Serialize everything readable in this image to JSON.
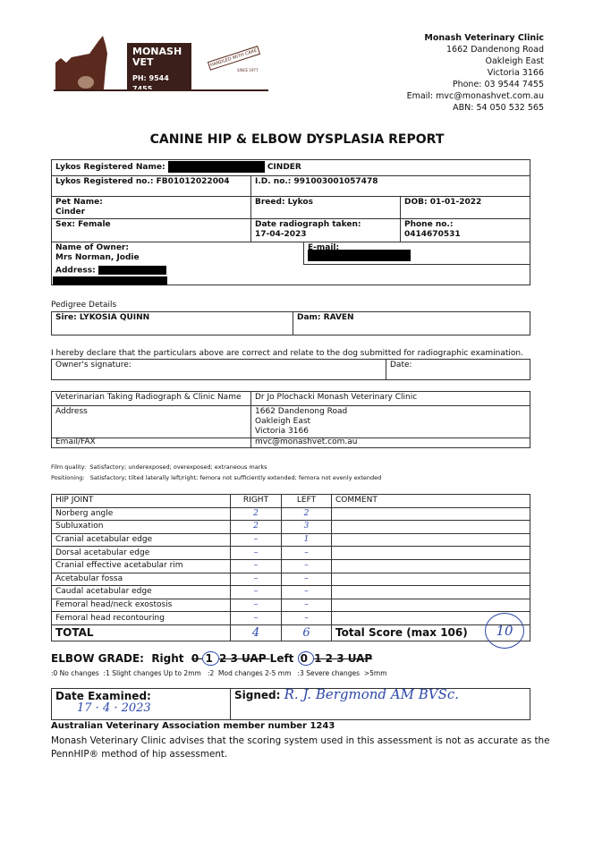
{
  "clinic": {
    "logo_name_line1": "MONASH",
    "logo_name_line2": "VET",
    "logo_phone": "PH: 9544 7455",
    "logo_stamp": "HANDLED WITH CARE",
    "logo_since": "SINCE 1977",
    "name": "Monash Veterinary Clinic",
    "address1": "1662 Dandenong Road",
    "address2": "Oakleigh East",
    "address3": "Victoria 3166",
    "phone": "Phone: 03 9544 7455",
    "email": "Email: mvc@monashvet.com.au",
    "abn": "ABN: 54 050 532 565"
  },
  "title": "CANINE HIP & ELBOW DYSPLASIA REPORT",
  "dog": {
    "registered_name_label": "Lykos Registered Name:",
    "registered_name": "CINDER",
    "registered_no": "Lykos Registered no.: FB01012022004",
    "id_no": "I.D. no.: 991003001057478",
    "pet_name_label": "Pet Name:",
    "pet_name": "Cinder",
    "breed": "Breed: Lykos",
    "dob": "DOB: 01-01-2022",
    "sex": "Sex: Female",
    "radiograph_label": "Date radiograph taken:",
    "radiograph_date": "17-04-2023",
    "phone_label": "Phone no.:",
    "phone": "0414670531",
    "owner_label": "Name of Owner:",
    "owner": "Mrs Norman, Jodie",
    "email_label": "E-mail:",
    "address_label": "Address:"
  },
  "pedigree": {
    "heading": "Pedigree Details",
    "sire": "Sire: LYKOSIA QUINN",
    "dam": "Dam: RAVEN"
  },
  "declaration": {
    "text": "I hereby declare that the particulars above are correct and relate to the dog submitted for radiographic examination.",
    "signature_label": "Owner's signature:",
    "date_label": "Date:"
  },
  "vet": {
    "label": "Veterinarian Taking Radiograph & Clinic Name",
    "value": "Dr Jo Plochacki Monash Veterinary Clinic",
    "address_label": "Address",
    "address1": "1662 Dandenong Road",
    "address2": "Oakleigh East",
    "address3": "Victoria 3166",
    "email_label": "Email/FAX",
    "email": "mvc@monashvet.com.au"
  },
  "film_quality": "Film quality:  Satisfactory; underexposed; overexposed; extraneous marks",
  "positioning": "Positioning:   Satisfactory; tilted laterally left/right; femora not sufficiently extended; femora not evenly extended",
  "hip": {
    "headers": [
      "HIP JOINT",
      "RIGHT",
      "LEFT",
      "COMMENT"
    ],
    "rows": [
      [
        "Norberg angle",
        "2",
        "2"
      ],
      [
        "Subluxation",
        "2",
        "3"
      ],
      [
        "Cranial acetabular edge",
        "–",
        "1"
      ],
      [
        "Dorsal acetabular edge",
        "–",
        "–"
      ],
      [
        "Cranial effective acetabular rim",
        "–",
        "–"
      ],
      [
        "Acetabular fossa",
        "–",
        "–"
      ],
      [
        "Caudal acetabular edge",
        "–",
        "–"
      ],
      [
        "Femoral head/neck exostosis",
        "–",
        "–"
      ],
      [
        "Femoral head recontouring",
        "–",
        "–"
      ]
    ],
    "total_label": "TOTAL",
    "total_right": "4",
    "total_left": "6",
    "score_label": "Total Score (max 106)",
    "score": "10"
  },
  "elbow": {
    "label": "ELBOW GRADE:",
    "right_label": "Right",
    "left_label": "Left",
    "grades": [
      "0",
      "1",
      "2",
      "3",
      "UAP"
    ],
    "right_selected": "1",
    "left_selected": "0",
    "legend": ":0 No changes  :1 Slight changes Up to 2mm   :2  Mod changes 2-5 mm   :3 Severe changes  >5mm"
  },
  "exam": {
    "date_label": "Date Examined:",
    "date": "17 · 4 · 2023",
    "signed_label": "Signed:",
    "signature": "R. J. Bergmond AM BVSc."
  },
  "footer": {
    "ava": "Australian Veterinary Association member number 1243",
    "advisory_line1": "Monash Veterinary Clinic advises that the scoring system used in this assessment is not as accurate as the",
    "advisory_line2": "PennHIP® method of hip assessment."
  }
}
